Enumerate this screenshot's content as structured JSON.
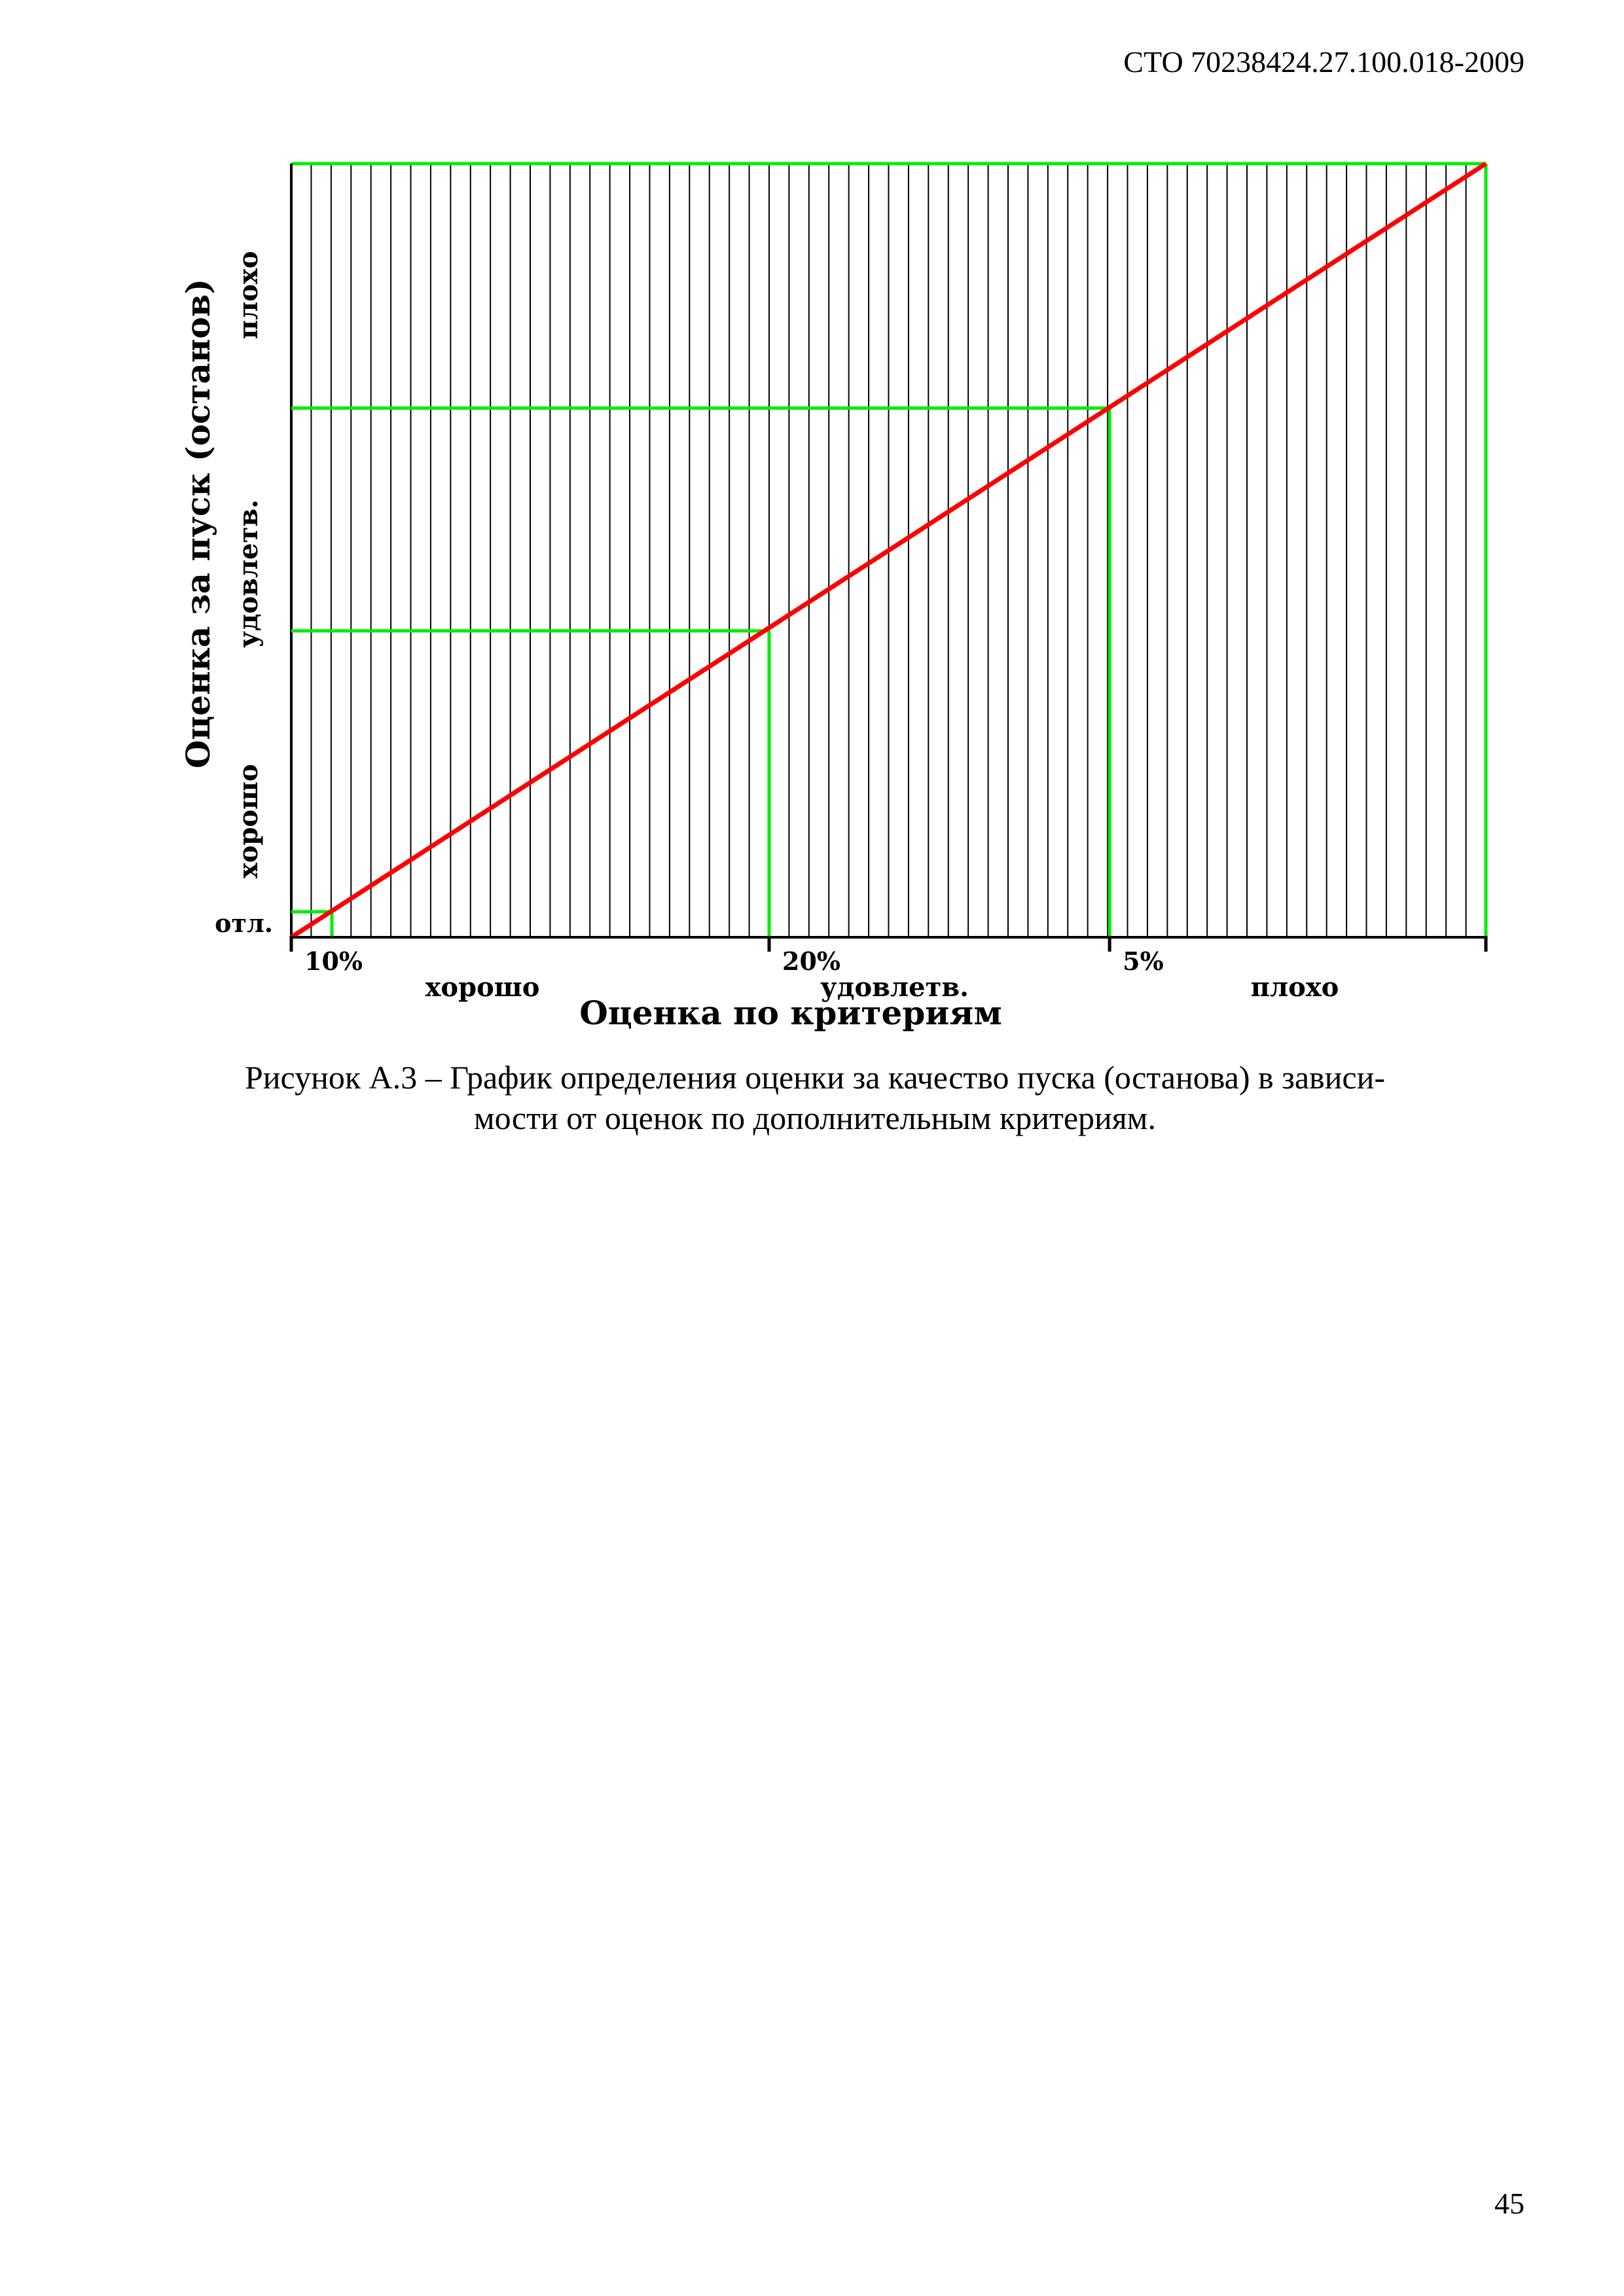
{
  "document": {
    "header_code": "СТО 70238424.27.100.018-2009",
    "page_number": "45",
    "caption_line1": "Рисунок А.3 – График определения оценки за качество пуска (останова) в зависи-",
    "caption_line2": "мости от оценок по дополнительным критериям."
  },
  "chart_data": {
    "type": "line",
    "title": "",
    "xlabel": "Оценка по критериям",
    "ylabel": "Оценка за пуск (останов)",
    "xlim": [
      0,
      100
    ],
    "ylim": [
      0,
      100
    ],
    "grid": true,
    "grid_vertical_lines": 60,
    "x_ticks": [
      {
        "x": 0,
        "label": "10%"
      },
      {
        "x": 40,
        "label": "20%"
      },
      {
        "x": 68.5,
        "label": "5%"
      },
      {
        "x": 100,
        "label": ""
      }
    ],
    "x_zones": [
      {
        "label": "хорошо",
        "x": 16
      },
      {
        "label": "удовлетв.",
        "x": 50.5
      },
      {
        "label": "плохо",
        "x": 84
      }
    ],
    "y_zones": [
      {
        "label": "отл.",
        "y": 1.7,
        "orientation": "horizontal"
      },
      {
        "label": "хорошо",
        "y": 15,
        "orientation": "vertical"
      },
      {
        "label": "удовлетв.",
        "y": 47,
        "orientation": "vertical"
      },
      {
        "label": "плохо",
        "y": 83,
        "orientation": "vertical"
      }
    ],
    "series": [
      {
        "values": [
          [
            0,
            0
          ],
          [
            100,
            100
          ]
        ],
        "color": "#ff0000"
      }
    ],
    "threshold_points": [
      {
        "x": 3.4,
        "y": 3.3
      },
      {
        "x": 40,
        "y": 39.6
      },
      {
        "x": 68.5,
        "y": 68.4
      }
    ],
    "colors": {
      "line": "#ff0000",
      "threshold": "#00ee00",
      "grid": "#000000",
      "frame": "#00ee00"
    }
  }
}
